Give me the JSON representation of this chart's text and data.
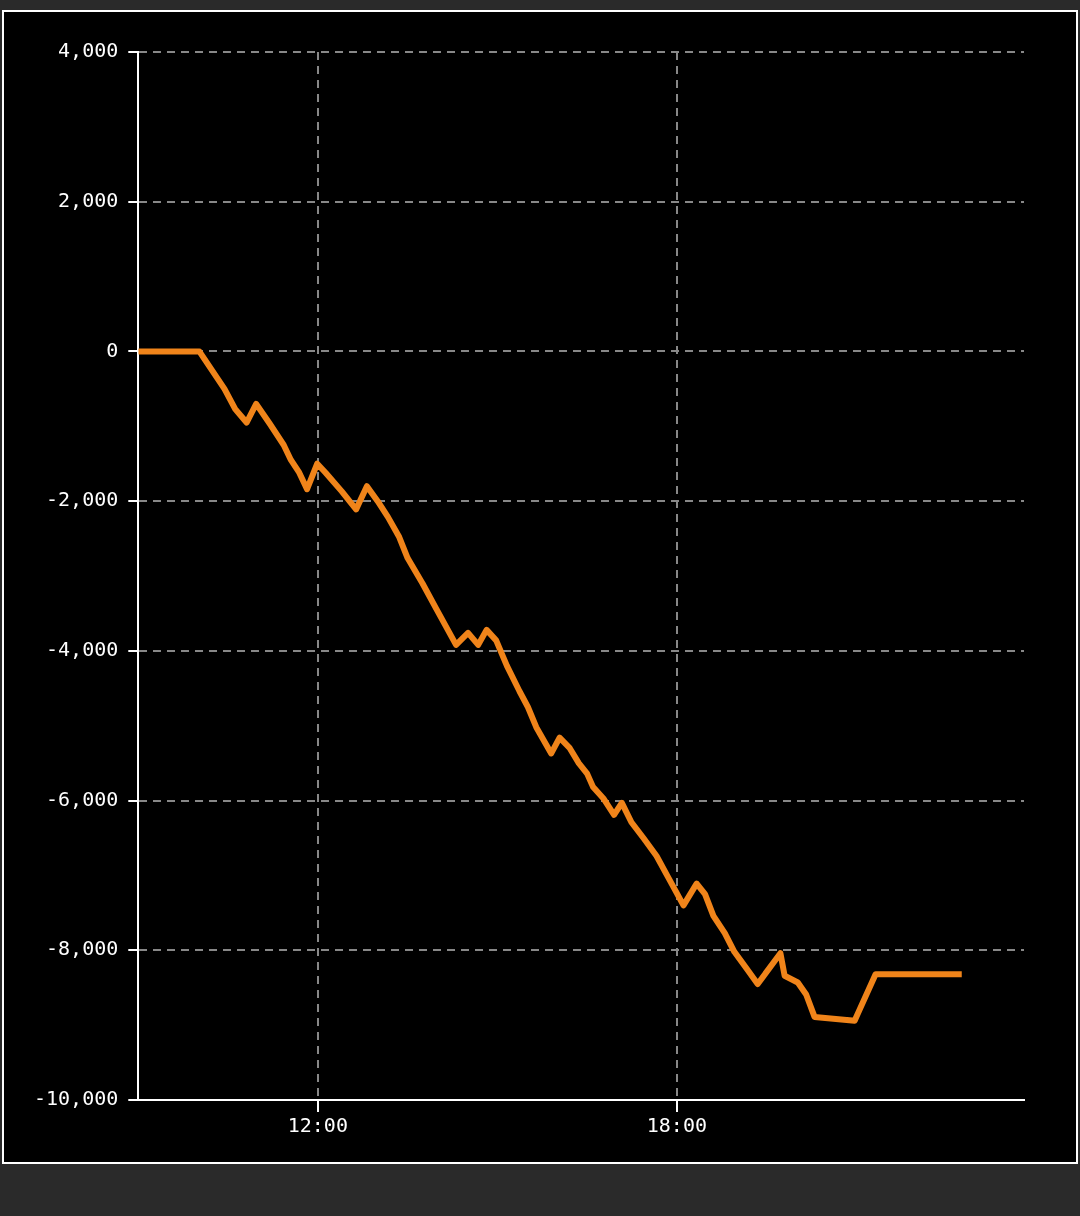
{
  "chart_data": {
    "type": "line",
    "x": [
      9,
      10.02,
      10.44,
      10.62,
      10.81,
      10.97,
      11.2,
      11.43,
      11.55,
      11.69,
      11.82,
      11.99,
      12.13,
      12.4,
      12.64,
      12.82,
      13,
      13.17,
      13.36,
      13.5,
      13.75,
      13.98,
      14.31,
      14.51,
      14.68,
      14.82,
      14.98,
      15.16,
      15.37,
      15.51,
      15.65,
      15.9,
      16.04,
      16.21,
      16.36,
      16.5,
      16.6,
      16.78,
      16.95,
      17.08,
      17.24,
      17.45,
      17.66,
      17.85,
      18.11,
      18.33,
      18.47,
      18.61,
      18.8,
      18.96,
      19.17,
      19.35,
      19.73,
      19.8,
      20.02,
      20.16,
      20.3,
      20.97,
      21.32,
      22.76
    ],
    "series": [
      {
        "color": "#f0841a",
        "values": [
          0,
          0,
          -500,
          -770,
          -950,
          -700,
          -970,
          -1250,
          -1450,
          -1620,
          -1840,
          -1500,
          -1620,
          -1870,
          -2110,
          -1800,
          -2000,
          -2210,
          -2480,
          -2760,
          -3100,
          -3440,
          -3920,
          -3760,
          -3920,
          -3720,
          -3860,
          -4200,
          -4540,
          -4750,
          -5020,
          -5370,
          -5160,
          -5300,
          -5500,
          -5640,
          -5820,
          -5980,
          -6190,
          -6030,
          -6290,
          -6510,
          -6740,
          -7020,
          -7400,
          -7110,
          -7250,
          -7540,
          -7770,
          -8020,
          -8250,
          -8450,
          -8040,
          -8340,
          -8430,
          -8590,
          -8890,
          -8940,
          -8320,
          -8320
        ]
      }
    ],
    "xlim": [
      9,
      23.8
    ],
    "xticks": [
      {
        "value": 12,
        "label": "12:00"
      },
      {
        "value": 18,
        "label": "18:00"
      }
    ],
    "ylim": [
      -10000,
      4000
    ],
    "yticks": [
      {
        "value": -10000,
        "label": "-10,000"
      },
      {
        "value": -8000,
        "label": "-8,000"
      },
      {
        "value": -6000,
        "label": "-6,000"
      },
      {
        "value": -4000,
        "label": "-4,000"
      },
      {
        "value": -2000,
        "label": "-2,000"
      },
      {
        "value": 0,
        "label": "0"
      },
      {
        "value": 2000,
        "label": "2,000"
      },
      {
        "value": 4000,
        "label": "4,000"
      }
    ],
    "grid": true,
    "legend": false,
    "marker": "none",
    "line_style": "solid"
  }
}
